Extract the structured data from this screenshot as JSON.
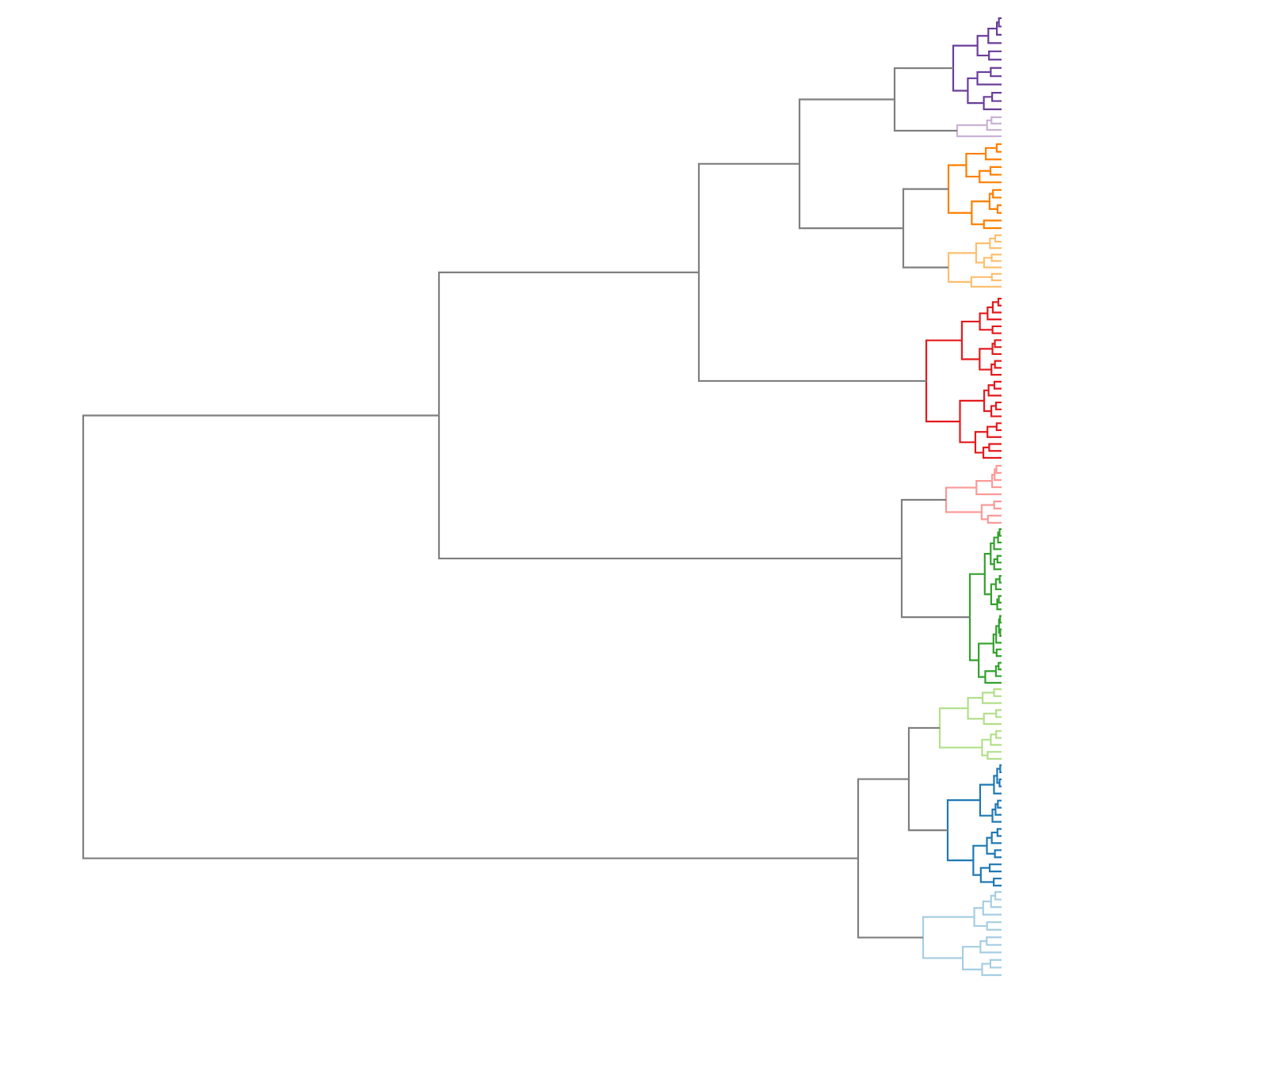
{
  "chart_data": {
    "type": "dendrogram",
    "orientation": "left",
    "colors": {
      "trunk": "#7f7f7f",
      "purple_dark": "#6a3d9a",
      "purple_light": "#cab2d6",
      "orange_dark": "#ff7f00",
      "orange_light": "#fdbf6f",
      "red": "#e31a1c",
      "pink": "#fb9a99",
      "green_dark": "#33a02c",
      "green_light": "#b2df8a",
      "blue_dark": "#1f78b4",
      "blue_light": "#a6cee3"
    },
    "clusters": [
      {
        "id": "purple_dark",
        "leaves": 12
      },
      {
        "id": "purple_light",
        "leaves": 4
      },
      {
        "id": "orange_dark",
        "leaves": 12
      },
      {
        "id": "orange_light",
        "leaves": 9
      },
      {
        "id": "red",
        "leaves": 24
      },
      {
        "id": "pink",
        "leaves": 9
      },
      {
        "id": "green_dark",
        "leaves": 24
      },
      {
        "id": "green_light",
        "leaves": 11
      },
      {
        "id": "blue_dark",
        "leaves": 18
      },
      {
        "id": "blue_light",
        "leaves": 12
      }
    ],
    "grid": false,
    "legend": "none"
  }
}
